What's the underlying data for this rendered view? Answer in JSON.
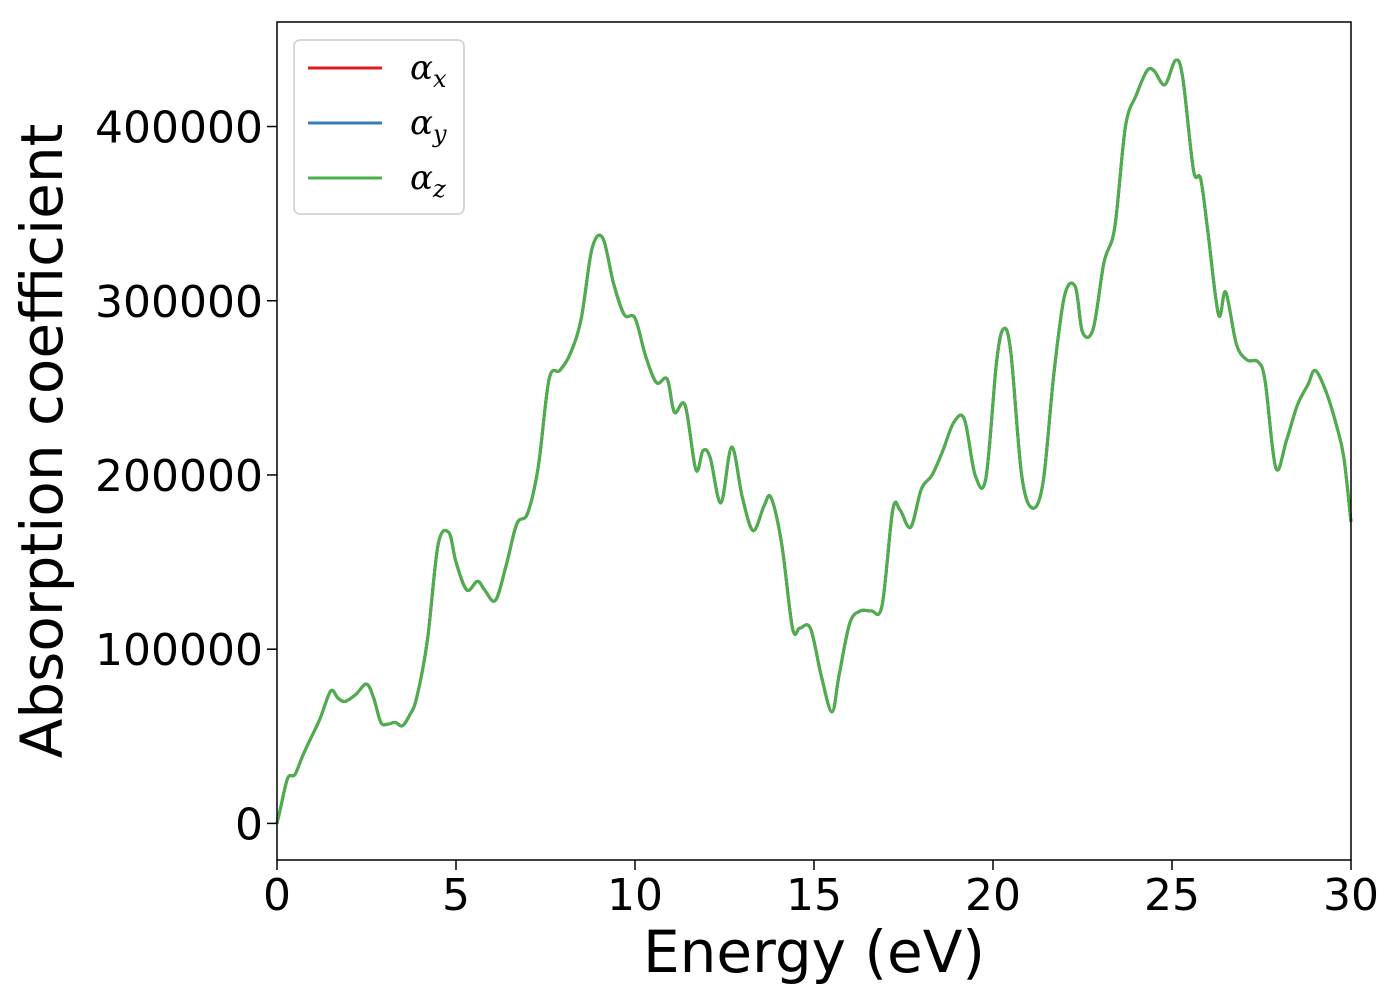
{
  "chart_data": {
    "type": "line",
    "xlabel": "Energy (eV)",
    "ylabel": "Absorption coefficient",
    "xlim": [
      0,
      30
    ],
    "ylim": [
      -21000,
      460000
    ],
    "xticks": [
      0,
      5,
      10,
      15,
      20,
      25,
      30
    ],
    "yticks": [
      0,
      100000,
      200000,
      300000,
      400000
    ],
    "grid": false,
    "legend_position": "top-left",
    "series": [
      {
        "name": "α",
        "subscript": "x",
        "color": "#e41a1c"
      },
      {
        "name": "α",
        "subscript": "y",
        "color": "#377eb8"
      },
      {
        "name": "α",
        "subscript": "z",
        "color": "#4daf4a"
      }
    ],
    "x": [
      0,
      0.1,
      0.3,
      0.5,
      0.7,
      0.9,
      1.2,
      1.5,
      1.7,
      1.9,
      2.2,
      2.5,
      2.7,
      2.9,
      3.1,
      3.3,
      3.5,
      3.7,
      3.9,
      4.2,
      4.5,
      4.8,
      5.0,
      5.3,
      5.6,
      5.8,
      6.1,
      6.4,
      6.7,
      7.0,
      7.3,
      7.6,
      7.9,
      8.2,
      8.5,
      8.8,
      9.1,
      9.4,
      9.7,
      10.0,
      10.3,
      10.6,
      10.9,
      11.1,
      11.4,
      11.7,
      11.9,
      12.1,
      12.4,
      12.7,
      13.0,
      13.3,
      13.6,
      13.8,
      14.1,
      14.4,
      14.6,
      14.9,
      15.2,
      15.5,
      15.7,
      16.0,
      16.3,
      16.6,
      16.9,
      17.2,
      17.4,
      17.7,
      18.0,
      18.3,
      18.6,
      18.9,
      19.2,
      19.5,
      19.8,
      20.1,
      20.3,
      20.5,
      20.8,
      21.1,
      21.4,
      21.7,
      22.0,
      22.3,
      22.5,
      22.8,
      23.1,
      23.4,
      23.7,
      24.0,
      24.3,
      24.5,
      24.8,
      25.1,
      25.3,
      25.6,
      25.8,
      26.0,
      26.3,
      26.5,
      26.8,
      27.1,
      27.4,
      27.6,
      27.9,
      28.2,
      28.5,
      28.8,
      29.0,
      29.3,
      29.6,
      29.8,
      30.0
    ],
    "values": [
      0,
      9000,
      26000,
      28000,
      38000,
      47000,
      60000,
      76000,
      72000,
      70000,
      74000,
      80000,
      72000,
      58000,
      57000,
      58000,
      56000,
      62000,
      72000,
      105000,
      160000,
      167000,
      150000,
      134000,
      139000,
      134000,
      128000,
      148000,
      172000,
      178000,
      205000,
      255000,
      260000,
      270000,
      290000,
      330000,
      336000,
      310000,
      292000,
      290000,
      268000,
      253000,
      255000,
      236000,
      240000,
      203000,
      214000,
      210000,
      184000,
      216000,
      187000,
      168000,
      182000,
      187000,
      160000,
      112000,
      112000,
      112000,
      85000,
      64000,
      85000,
      115000,
      122000,
      122000,
      125000,
      180000,
      180000,
      170000,
      192000,
      200000,
      214000,
      230000,
      232000,
      200000,
      198000,
      265000,
      284000,
      270000,
      200000,
      181000,
      196000,
      258000,
      303000,
      308000,
      282000,
      284000,
      322000,
      342000,
      400000,
      418000,
      432000,
      432000,
      424000,
      438000,
      428000,
      375000,
      370000,
      340000,
      292000,
      305000,
      275000,
      266000,
      265000,
      254000,
      204000,
      220000,
      240000,
      252000,
      260000,
      248000,
      228000,
      210000,
      173000
    ]
  }
}
